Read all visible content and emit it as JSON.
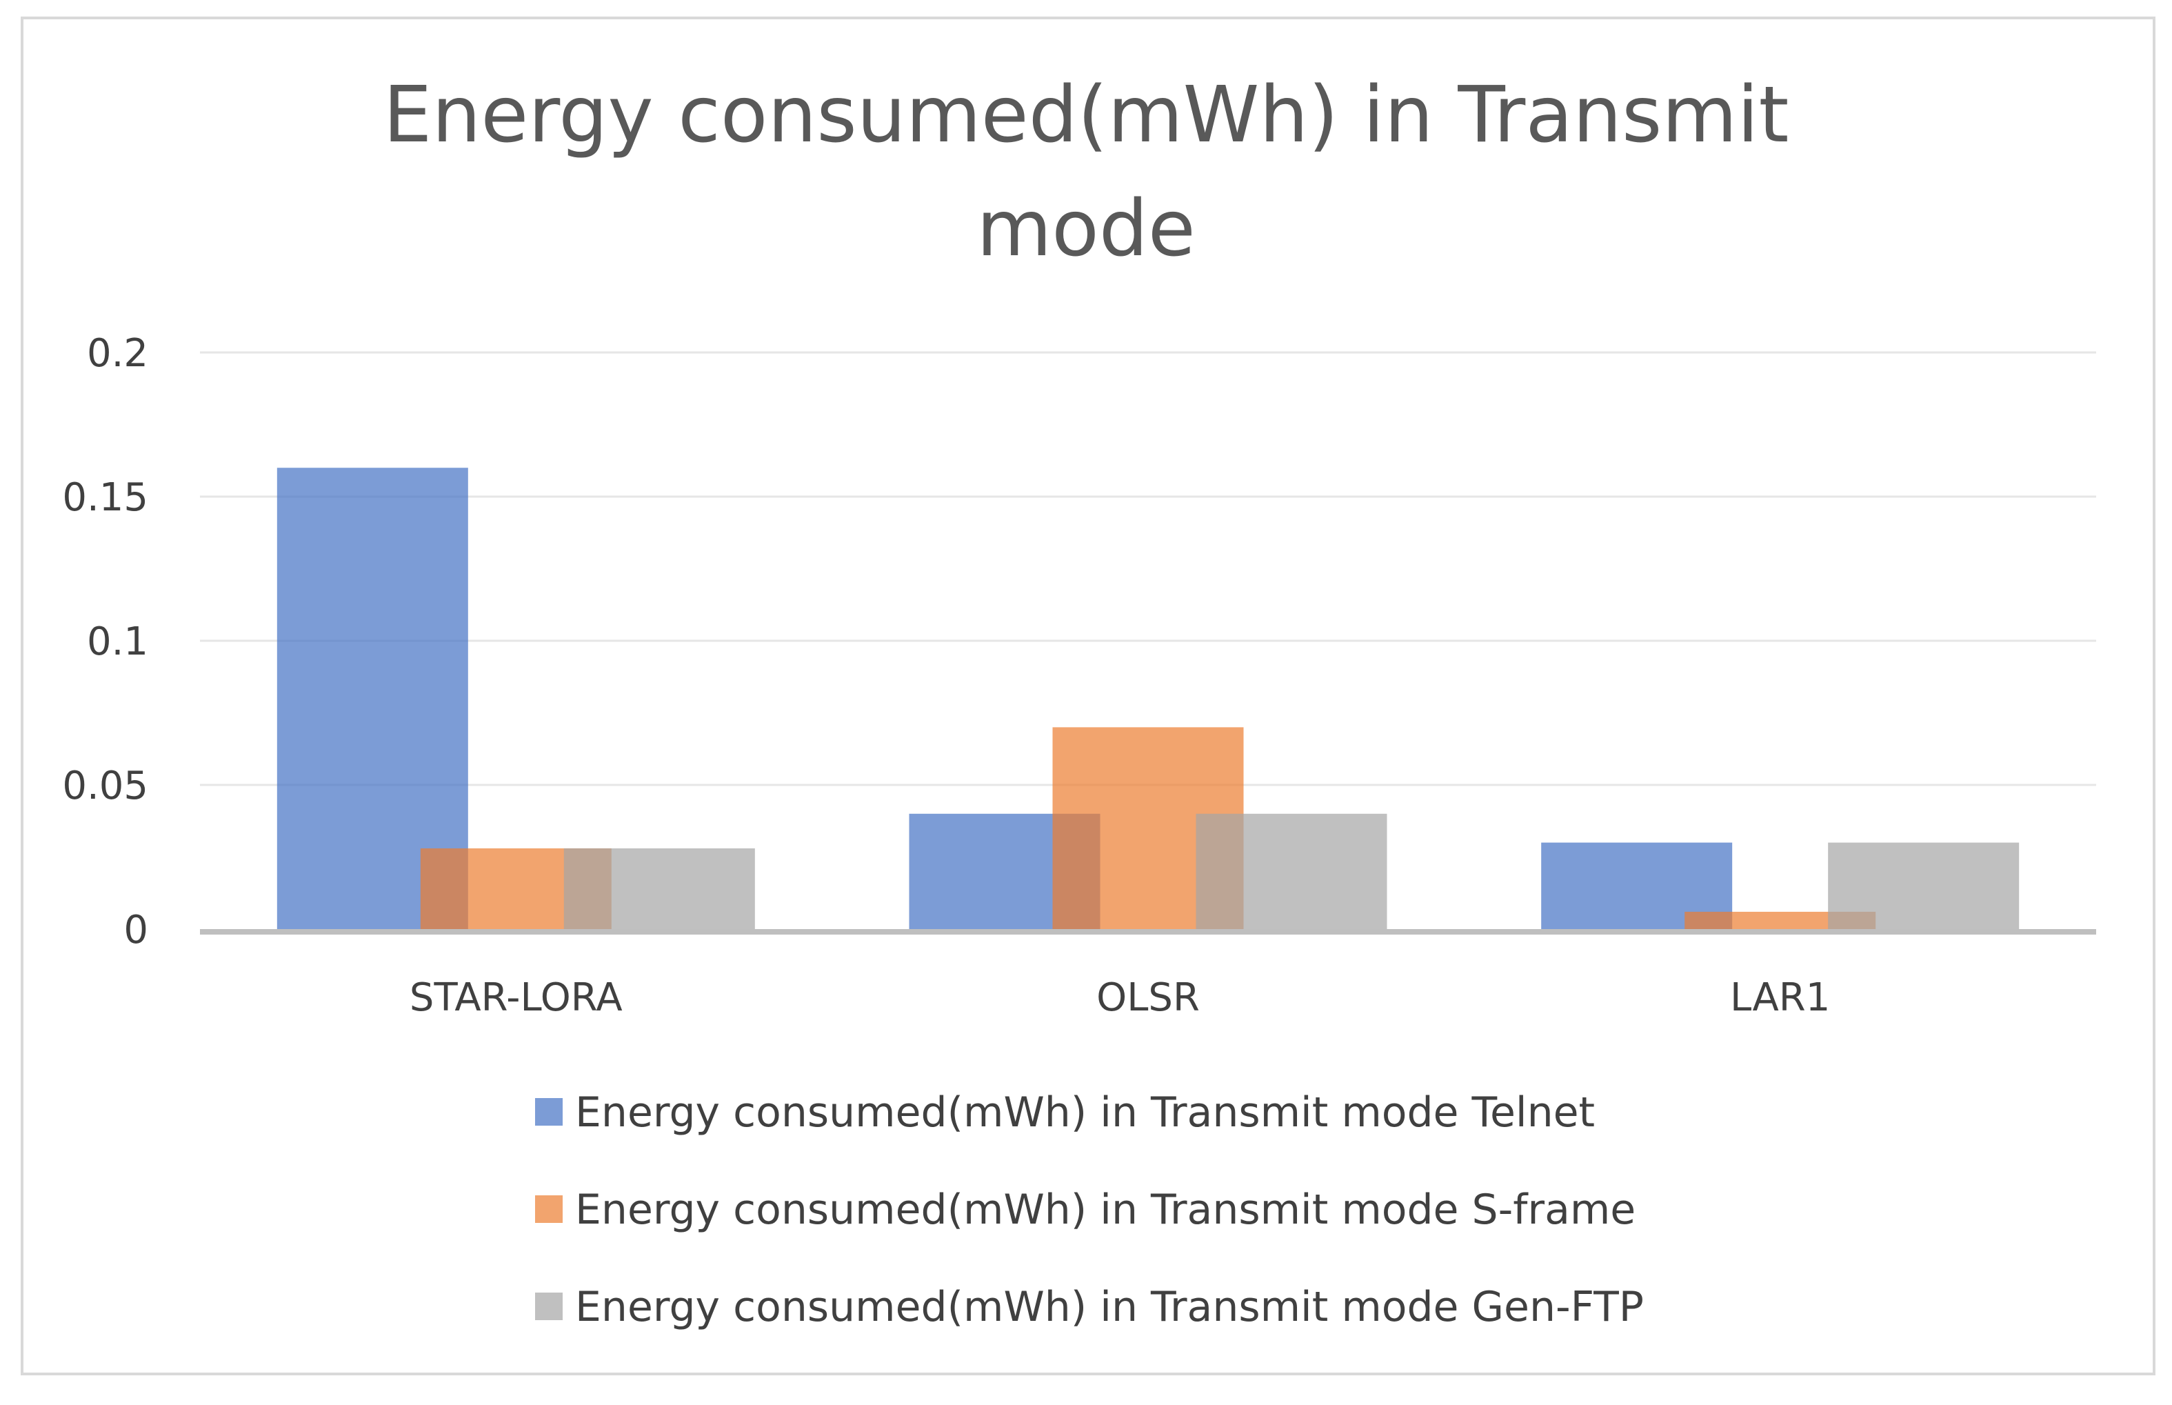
{
  "chart_data": {
    "type": "bar",
    "title": "Energy consumed(mWh) in Transmit mode",
    "title_lines": [
      "Energy consumed(mWh) in Transmit",
      "mode"
    ],
    "xlabel": "",
    "ylabel": "",
    "ylim": [
      0,
      0.2
    ],
    "yticks": [
      0,
      0.05,
      0.1,
      0.15,
      0.2
    ],
    "ytick_labels": [
      "0",
      "0.05",
      "0.1",
      "0.15",
      "0.2"
    ],
    "grid": true,
    "legend_position": "bottom",
    "categories": [
      "STAR-LORA",
      "OLSR",
      "LAR1"
    ],
    "series": [
      {
        "name": "Energy consumed(mWh) in Transmit mode Telnet",
        "values": [
          0.16,
          0.04,
          0.03
        ],
        "color": "#4472c4"
      },
      {
        "name": "Energy consumed(mWh) in Transmit mode S-frame",
        "values": [
          0.028,
          0.07,
          0.006
        ],
        "color": "#ed7d31"
      },
      {
        "name": "Energy consumed(mWh) in Transmit mode Gen-FTP",
        "values": [
          0.028,
          0.04,
          0.03
        ],
        "color": "#a5a5a5"
      }
    ]
  }
}
